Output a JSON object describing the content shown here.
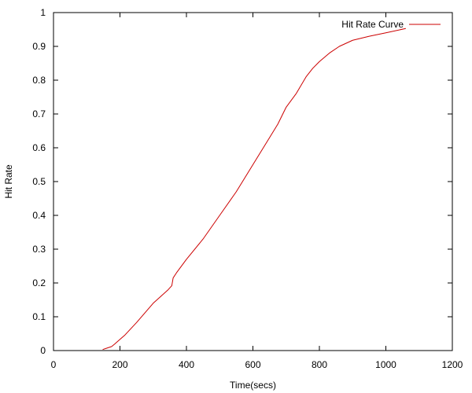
{
  "chart_data": {
    "type": "line",
    "title": "",
    "xlabel": "Time(secs)",
    "ylabel": "Hit Rate",
    "xlim": [
      0,
      1200
    ],
    "ylim": [
      0,
      1
    ],
    "xticks": [
      0,
      200,
      400,
      600,
      800,
      1000,
      1200
    ],
    "yticks": [
      0,
      0.1,
      0.2,
      0.3,
      0.4,
      0.5,
      0.6,
      0.7,
      0.8,
      0.9,
      1
    ],
    "xtick_labels": [
      "0",
      "200",
      "400",
      "600",
      "800",
      "1000",
      "1200"
    ],
    "ytick_labels": [
      "0",
      "0.1",
      "0.2",
      "0.3",
      "0.4",
      "0.5",
      "0.6",
      "0.7",
      "0.8",
      "0.9",
      "1"
    ],
    "grid": false,
    "legend_position": "top-right",
    "series": [
      {
        "name": "Hit Rate Curve",
        "color": "#cc0000",
        "x": [
          148,
          160,
          175,
          185,
          200,
          215,
          250,
          300,
          345,
          356,
          360,
          370,
          400,
          450,
          500,
          550,
          600,
          650,
          675,
          700,
          730,
          760,
          780,
          800,
          830,
          860,
          900,
          950,
          1000,
          1060
        ],
        "y": [
          0.003,
          0.007,
          0.012,
          0.02,
          0.033,
          0.046,
          0.083,
          0.14,
          0.18,
          0.192,
          0.215,
          0.23,
          0.27,
          0.33,
          0.4,
          0.47,
          0.55,
          0.63,
          0.67,
          0.72,
          0.76,
          0.81,
          0.835,
          0.855,
          0.88,
          0.9,
          0.918,
          0.93,
          0.94,
          0.953
        ]
      }
    ]
  }
}
